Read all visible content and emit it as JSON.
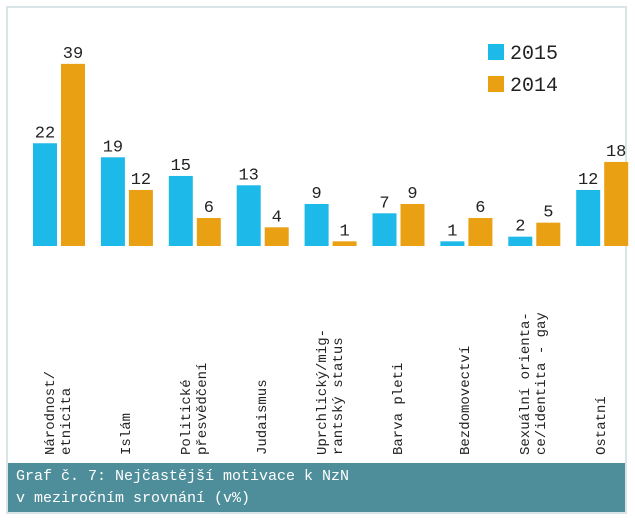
{
  "chart_data": {
    "type": "bar",
    "categories": [
      "Národnost/\netnicita",
      "Islám",
      "Politické\npřesvědčení",
      "Judaismus",
      "Uprchlický/mig-\nrantský status",
      "Barva pleti",
      "Bezdomovectví",
      "Sexuální orienta-\nce/identita - gay",
      "Ostatní"
    ],
    "series": [
      {
        "name": "2015",
        "color": "#1cb9e9",
        "values": [
          22,
          19,
          15,
          13,
          9,
          7,
          1,
          2,
          12
        ]
      },
      {
        "name": "2014",
        "color": "#e9a012",
        "values": [
          39,
          12,
          6,
          4,
          1,
          9,
          6,
          5,
          18
        ]
      }
    ],
    "legend": "top-right",
    "caption": "Graf č. 7: Nejčastější motivace k NzN\nv meziročním srovnání (v%)"
  }
}
